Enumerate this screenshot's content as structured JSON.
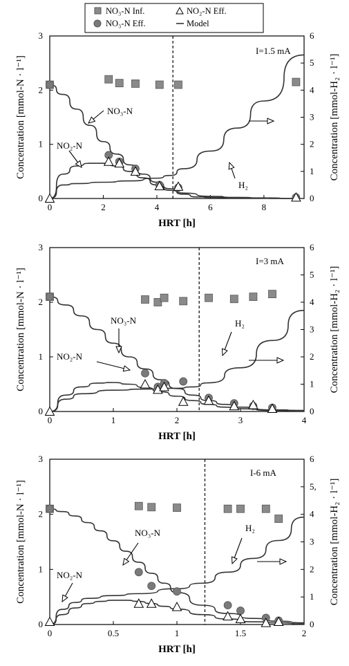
{
  "legend": [
    {
      "marker": "square",
      "label": "NO₃-N Inf."
    },
    {
      "marker": "triangle",
      "label": "NO₂-N Eff."
    },
    {
      "marker": "circle",
      "label": "NO₃-N Eff."
    },
    {
      "marker": "line",
      "label": "Model"
    }
  ],
  "colors": {
    "square": "#8a8a8a",
    "circle": "#7a7a7a",
    "triangle_fill": "#ffffff",
    "line": "#333333"
  },
  "chart_data": [
    {
      "type": "scatter",
      "title": "I=1.5 mA",
      "xlabel": "HRT [h]",
      "ylabel": "Concentration [mmol-N · l⁻¹]",
      "y2label": "Concentration [mmol-H₂ · l⁻¹]",
      "xlim": [
        0,
        9.5
      ],
      "ylim": [
        0,
        3
      ],
      "y2lim": [
        0,
        6
      ],
      "xticks": [
        0,
        2,
        4,
        6,
        8
      ],
      "yticks": [
        0,
        1,
        2,
        3
      ],
      "y2ticks": [
        0,
        1,
        2,
        3,
        4,
        5,
        6
      ],
      "dashed_x": 4.6,
      "series": [
        {
          "name": "NO₃-N Inf.",
          "marker": "square",
          "x": [
            0,
            2.2,
            2.6,
            3.2,
            4.1,
            4.8,
            9.2
          ],
          "y": [
            2.1,
            2.2,
            2.13,
            2.12,
            2.1,
            2.1,
            2.15
          ]
        },
        {
          "name": "NO₃-N Eff.",
          "marker": "circle",
          "x": [
            0,
            2.2,
            2.6,
            3.2,
            4.1,
            4.8,
            9.2
          ],
          "y": [
            2.1,
            0.8,
            0.68,
            0.55,
            0.25,
            0.2,
            0.02
          ]
        },
        {
          "name": "NO₂-N Eff.",
          "marker": "triangle",
          "x": [
            0,
            2.2,
            2.6,
            3.2,
            4.1,
            4.8,
            9.2
          ],
          "y": [
            0,
            0.68,
            0.65,
            0.5,
            0.23,
            0.22,
            0.02
          ]
        }
      ],
      "models": [
        {
          "label": "NO₃-N",
          "axis": "left",
          "x": [
            0,
            0.5,
            1,
            1.5,
            2,
            2.5,
            3,
            3.5,
            4,
            4.5,
            5,
            6,
            7,
            8,
            9.2
          ],
          "y": [
            2.1,
            1.92,
            1.65,
            1.35,
            1.05,
            0.82,
            0.62,
            0.45,
            0.3,
            0.18,
            0.1,
            0.04,
            0.02,
            0.01,
            0.0
          ]
        },
        {
          "label": "NO₂-N",
          "axis": "left",
          "x": [
            0,
            0.5,
            1,
            1.5,
            2,
            2.5,
            3,
            3.5,
            4,
            4.5,
            5,
            5.5,
            6,
            7,
            9.2
          ],
          "y": [
            0,
            0.45,
            0.6,
            0.65,
            0.65,
            0.6,
            0.5,
            0.38,
            0.25,
            0.15,
            0.08,
            0.03,
            0.02,
            0.01,
            0.0
          ]
        },
        {
          "label": "H₂",
          "axis": "right",
          "x": [
            0,
            0.5,
            1,
            2,
            3,
            4,
            4.5,
            5,
            6,
            7,
            8,
            9.5
          ],
          "y": [
            0,
            0.5,
            0.55,
            0.6,
            0.65,
            0.75,
            0.85,
            1.1,
            1.75,
            2.6,
            3.6,
            5.3
          ]
        }
      ],
      "annotations": [
        "NO₃-N",
        "NO₂-N",
        "H₂"
      ]
    },
    {
      "type": "scatter",
      "title": "I=3 mA",
      "xlabel": "HRT [h]",
      "ylabel": "Concentration [mmol-N · l⁻¹]",
      "y2label": "Concentration [mmol-H₂ · l⁻¹]",
      "xlim": [
        0,
        4
      ],
      "ylim": [
        0,
        3
      ],
      "y2lim": [
        0,
        6
      ],
      "xticks": [
        0,
        1,
        2,
        3,
        4
      ],
      "yticks": [
        0,
        1,
        2,
        3
      ],
      "y2ticks": [
        0,
        1,
        2,
        3,
        4,
        5,
        6
      ],
      "dashed_x": 2.35,
      "series": [
        {
          "name": "NO₃-N Inf.",
          "marker": "square",
          "x": [
            0,
            1.5,
            1.7,
            1.8,
            2.1,
            2.5,
            2.9,
            3.2,
            3.5
          ],
          "y": [
            2.1,
            2.05,
            2.0,
            2.08,
            2.02,
            2.08,
            2.06,
            2.1,
            2.15
          ]
        },
        {
          "name": "NO₃-N Eff.",
          "marker": "circle",
          "x": [
            0,
            1.5,
            1.7,
            1.8,
            2.1,
            2.5,
            2.9,
            3.2,
            3.5
          ],
          "y": [
            2.1,
            0.7,
            0.45,
            0.52,
            0.55,
            0.25,
            0.15,
            0.1,
            0.07
          ]
        },
        {
          "name": "NO₂-N Eff.",
          "marker": "triangle",
          "x": [
            0,
            1.5,
            1.7,
            1.8,
            2.1,
            2.5,
            2.9,
            3.2,
            3.5
          ],
          "y": [
            0,
            0.5,
            0.4,
            0.45,
            0.18,
            0.2,
            0.1,
            0.12,
            0.05
          ]
        }
      ],
      "models": [
        {
          "label": "NO₃-N",
          "axis": "left",
          "x": [
            0,
            0.25,
            0.5,
            0.75,
            1,
            1.25,
            1.5,
            1.75,
            2,
            2.25,
            2.5,
            2.75,
            3,
            3.5,
            4
          ],
          "y": [
            2.1,
            1.95,
            1.75,
            1.5,
            1.25,
            1.0,
            0.78,
            0.58,
            0.42,
            0.3,
            0.2,
            0.13,
            0.08,
            0.03,
            0.02
          ]
        },
        {
          "label": "NO₂-N",
          "axis": "left",
          "x": [
            0,
            0.25,
            0.5,
            0.75,
            1,
            1.25,
            1.5,
            1.75,
            2,
            2.25,
            2.5,
            2.75,
            3,
            3.5,
            4
          ],
          "y": [
            0,
            0.3,
            0.45,
            0.52,
            0.53,
            0.5,
            0.44,
            0.36,
            0.28,
            0.2,
            0.13,
            0.08,
            0.05,
            0.02,
            0.01
          ]
        },
        {
          "label": "H₂",
          "axis": "right",
          "x": [
            0,
            0.25,
            0.5,
            1,
            1.5,
            2,
            2.25,
            2.5,
            3,
            3.5,
            4
          ],
          "y": [
            0,
            0.45,
            0.65,
            0.78,
            0.82,
            0.85,
            0.9,
            1.05,
            1.6,
            2.6,
            3.7
          ]
        }
      ],
      "annotations": [
        "NO₃-N",
        "NO₂-N",
        "H₂"
      ]
    },
    {
      "type": "scatter",
      "title": "I-6 mA",
      "xlabel": "HRT [h]",
      "ylabel": "Concentration [mmol-N · l⁻¹]",
      "y2label": "Concentration [mmol-H₂ · l⁻¹]",
      "xlim": [
        0,
        2
      ],
      "ylim": [
        0,
        3
      ],
      "y2lim": [
        0,
        6
      ],
      "xticks": [
        0,
        0.5,
        1,
        1.5,
        2
      ],
      "yticks": [
        0,
        1,
        2,
        3
      ],
      "y2ticks": [
        0,
        1,
        2,
        3,
        4,
        5,
        6
      ],
      "y2ticklabels": [
        "0",
        "1",
        "2",
        "3",
        "4",
        "5,",
        "6"
      ],
      "dashed_x": 1.22,
      "series": [
        {
          "name": "NO₃-N Inf.",
          "marker": "square",
          "x": [
            0,
            0.7,
            0.8,
            1.0,
            1.4,
            1.5,
            1.7,
            1.8
          ],
          "y": [
            2.1,
            2.15,
            2.13,
            2.12,
            2.1,
            2.1,
            2.1,
            1.92
          ]
        },
        {
          "name": "NO₃-N Eff.",
          "marker": "circle",
          "x": [
            0,
            0.7,
            0.8,
            1.0,
            1.4,
            1.5,
            1.7,
            1.8
          ],
          "y": [
            2.1,
            0.95,
            0.7,
            0.6,
            0.35,
            0.25,
            0.12,
            0.07
          ]
        },
        {
          "name": "NO₂-N Eff.",
          "marker": "triangle",
          "x": [
            0,
            0.7,
            0.8,
            1.0,
            1.4,
            1.5,
            1.7,
            1.8
          ],
          "y": [
            0.05,
            0.38,
            0.38,
            0.32,
            0.15,
            0.1,
            0.03,
            0.05
          ]
        }
      ],
      "models": [
        {
          "label": "NO₃-N",
          "axis": "left",
          "x": [
            0,
            0.1,
            0.2,
            0.3,
            0.4,
            0.5,
            0.6,
            0.7,
            0.8,
            0.9,
            1.0,
            1.2,
            1.4,
            1.6,
            1.8,
            2.0
          ],
          "y": [
            2.1,
            2.05,
            1.97,
            1.85,
            1.7,
            1.52,
            1.33,
            1.13,
            0.93,
            0.75,
            0.58,
            0.35,
            0.2,
            0.11,
            0.06,
            0.03
          ]
        },
        {
          "label": "NO₂-N",
          "axis": "left",
          "x": [
            0,
            0.1,
            0.2,
            0.3,
            0.4,
            0.5,
            0.6,
            0.7,
            0.8,
            0.9,
            1.0,
            1.2,
            1.4,
            1.6,
            1.8,
            2.0
          ],
          "y": [
            0,
            0.18,
            0.3,
            0.38,
            0.42,
            0.44,
            0.44,
            0.42,
            0.38,
            0.33,
            0.28,
            0.18,
            0.1,
            0.05,
            0.03,
            0.01
          ]
        },
        {
          "label": "H₂",
          "axis": "right",
          "x": [
            0,
            0.1,
            0.2,
            0.3,
            0.5,
            0.7,
            1.0,
            1.2,
            1.4,
            1.6,
            1.8,
            2.0
          ],
          "y": [
            0,
            0.55,
            0.8,
            0.95,
            1.05,
            1.12,
            1.3,
            1.5,
            1.9,
            2.4,
            3.05,
            3.9
          ]
        }
      ],
      "annotations": [
        "NO₃-N",
        "NO₂-N",
        "H₂"
      ]
    }
  ]
}
